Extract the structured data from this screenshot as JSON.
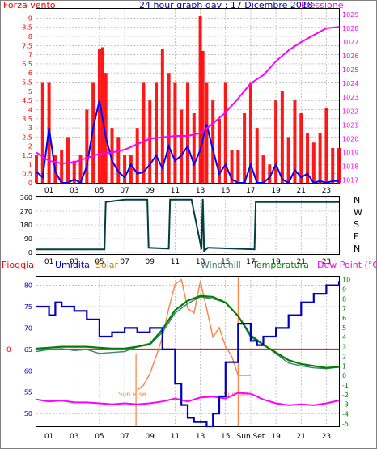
{
  "header": {
    "left_label": "Forza vento",
    "title": "24 hour graph day : 17 Dicembre 2018",
    "right_label": "Pressione"
  },
  "colors": {
    "wind": "#ff0000",
    "wind_avg": "#0000ff",
    "pressure": "#ff00ff",
    "direction": "#004040",
    "humidity": "#0000c0",
    "solar": "#ff8040",
    "windchill": "#408080",
    "temperature": "#008000",
    "dewpoint": "#ff00ff",
    "rain": "#ff0000",
    "grid": "#a0a0a0",
    "sun": "#ff8040"
  },
  "x_ticks": [
    "01",
    "03",
    "05",
    "07",
    "09",
    "11",
    "13",
    "15",
    "17",
    "19",
    "21",
    "23"
  ],
  "panels": {
    "wind": {
      "y_left_ticks": [
        "0",
        "0.5",
        "1",
        "1.5",
        "2",
        "2.5",
        "3",
        "3.5",
        "4",
        "4.5",
        "5",
        "5.5",
        "6",
        "6.5",
        "7",
        "7.5",
        "8",
        "8.5",
        "9"
      ],
      "y_right_ticks": [
        "1017",
        "1018",
        "1019",
        "1020",
        "1021",
        "1022",
        "1023",
        "1024",
        "1025",
        "1026",
        "1027",
        "1028",
        "1029"
      ]
    },
    "direction": {
      "y_left_ticks": [
        "0",
        "90",
        "180",
        "270",
        "360"
      ],
      "y_right_labels": [
        "N",
        "W",
        "S",
        "E",
        "N"
      ]
    },
    "temp": {
      "legend": {
        "rain": "Pioggia",
        "humidity": "Umidita",
        "solar": "Solar",
        "windchill": "Windchill",
        "temperature": "Temperatura",
        "dewpoint": "Dew Point (°C)"
      },
      "y_left_ticks": [
        "50",
        "55",
        "60",
        "65",
        "70",
        "75",
        "80"
      ],
      "rain_tick": "0",
      "y_right_ticks": [
        "-5",
        "-4",
        "-3",
        "-2",
        "-1",
        "0",
        "1",
        "2",
        "3",
        "4",
        "5",
        "6",
        "7",
        "8",
        "9",
        "10"
      ],
      "x_ticks": [
        "01",
        "03",
        "05",
        "07",
        "09",
        "11",
        "13",
        "15",
        "Sun Set",
        "19",
        "21",
        "23"
      ],
      "sunrise_label": "Sun Rise",
      "sunset_label": "Sun Set"
    }
  },
  "chart_data": [
    {
      "type": "line",
      "title": "24 hour graph day : 17 Dicembre 2018",
      "x_unit": "hour",
      "xlim": [
        0,
        24
      ],
      "ylim_left": [
        0,
        9.5
      ],
      "ylim_right": [
        1016.8,
        1029.4
      ],
      "series": [
        {
          "name": "Forza vento",
          "axis": "left",
          "style": "bars",
          "x": [
            0,
            0.5,
            1,
            1.5,
            2,
            2.5,
            3,
            3.5,
            4,
            4.5,
            5,
            5.25,
            5.5,
            6,
            6.5,
            7,
            7.5,
            8,
            8.5,
            9,
            9.5,
            10,
            10.5,
            11,
            11.5,
            12,
            12.5,
            13,
            13.2,
            13.5,
            14,
            14.5,
            15,
            15.5,
            16,
            16.5,
            17,
            17.5,
            18,
            18.5,
            19,
            19.5,
            20,
            20.5,
            21,
            21.5,
            22,
            22.5,
            23,
            23.5,
            24
          ],
          "y": [
            1.5,
            5.5,
            5.5,
            1.5,
            1.8,
            2.5,
            1.2,
            1.5,
            4,
            5.5,
            7.3,
            7.4,
            6,
            3,
            2.5,
            1.5,
            1.5,
            3,
            5.5,
            4.5,
            5.5,
            7.3,
            6,
            5.5,
            4,
            5.5,
            3.8,
            9.1,
            7.2,
            5.5,
            4.5,
            3.5,
            5.5,
            1.8,
            1.8,
            3.8,
            5.5,
            3,
            1.5,
            1,
            4.5,
            5,
            2.5,
            4.5,
            3.8,
            2.7,
            2.2,
            2.7,
            4.1,
            1.9,
            1.9
          ]
        },
        {
          "name": "",
          "axis": "left",
          "x": [
            0,
            0.5,
            1,
            1.5,
            2,
            2.5,
            3,
            3.5,
            4,
            4.5,
            5,
            5.5,
            6,
            6.5,
            7,
            7.5,
            8,
            8.5,
            9,
            9.5,
            10,
            10.5,
            11,
            11.5,
            12,
            12.5,
            13,
            13.5,
            14,
            14.5,
            15,
            15.5,
            16,
            16.5,
            17,
            17.5,
            18,
            18.5,
            19,
            19.5,
            20,
            20.5,
            21,
            21.5,
            22,
            22.5,
            23,
            23.5,
            24
          ],
          "y": [
            0.6,
            0.3,
            3,
            0.6,
            0,
            0,
            0.2,
            0,
            0.9,
            3,
            4.5,
            2.5,
            1.2,
            0.6,
            0.3,
            1,
            0.5,
            0.6,
            1,
            1.5,
            0.8,
            2,
            1.2,
            1.5,
            2,
            1,
            1.8,
            3.2,
            1.8,
            0.5,
            1,
            0.2,
            0,
            0,
            1,
            0,
            0,
            0.3,
            1,
            0.2,
            0,
            0.7,
            0.3,
            0.5,
            0,
            0.1,
            0,
            0.1,
            0.1
          ]
        },
        {
          "name": "Pressione",
          "axis": "right",
          "x": [
            0,
            1,
            2,
            3,
            4,
            5,
            6,
            7,
            8,
            9,
            10,
            11,
            12,
            13,
            14,
            15,
            16,
            17,
            18,
            19,
            20,
            21,
            22,
            23,
            24
          ],
          "y": [
            1019,
            1018.4,
            1018.2,
            1018.3,
            1018.6,
            1018.9,
            1019.0,
            1019.2,
            1019.6,
            1020.0,
            1020.1,
            1020.2,
            1020.2,
            1020.4,
            1021.1,
            1021.9,
            1022.9,
            1024.0,
            1024.6,
            1025.6,
            1026.4,
            1027.0,
            1027.5,
            1028.0,
            1028.1
          ]
        }
      ]
    },
    {
      "type": "line",
      "x_unit": "hour",
      "xlim": [
        0,
        24
      ],
      "ylim": [
        0,
        360
      ],
      "series": [
        {
          "name": "",
          "x": [
            0,
            5.4,
            5.5,
            7,
            8.8,
            8.9,
            10.5,
            10.6,
            12.3,
            13.1,
            13.2,
            13.3,
            13.6,
            13.7,
            17.3,
            17.4,
            24
          ],
          "y": [
            20,
            20,
            330,
            345,
            345,
            30,
            25,
            345,
            345,
            20,
            350,
            10,
            30,
            30,
            20,
            330,
            330
          ]
        }
      ]
    },
    {
      "type": "line",
      "x_unit": "hour",
      "xlim": [
        0,
        24
      ],
      "ylim_left": [
        47,
        82
      ],
      "ylim_right": [
        -5.3,
        10.3
      ],
      "series": [
        {
          "name": "Umidita",
          "axis": "left",
          "x": [
            0,
            1,
            1.5,
            2,
            3,
            4,
            5,
            5.5,
            6,
            7,
            8,
            9,
            10,
            11,
            11.5,
            12,
            12.5,
            13,
            13.5,
            14,
            14.5,
            15,
            16,
            17,
            17.5,
            18,
            19,
            20,
            21,
            22,
            23,
            24
          ],
          "y": [
            75,
            73,
            76,
            75,
            74,
            72,
            68,
            68,
            69,
            70,
            69,
            70,
            65,
            57,
            52,
            49,
            48,
            48,
            47,
            50,
            54,
            62,
            71,
            67,
            66,
            68,
            70,
            73,
            76,
            78,
            80,
            81
          ]
        },
        {
          "name": "Solar",
          "axis": "right",
          "x": [
            8,
            8.5,
            9,
            9.5,
            10,
            10.5,
            11,
            11.5,
            12,
            12.5,
            13,
            13.5,
            14,
            14.5,
            15,
            15.5,
            16,
            16.5,
            17
          ],
          "y": [
            -1.5,
            -1,
            0.2,
            2,
            4,
            7,
            9.5,
            10,
            7,
            6.5,
            9.8,
            7,
            4,
            5,
            3,
            2,
            0,
            0,
            0
          ]
        },
        {
          "name": "Windchill",
          "axis": "right",
          "x": [
            0,
            1,
            2,
            3,
            4,
            5,
            6,
            7,
            8,
            9,
            10,
            11,
            12,
            13,
            14,
            15,
            16,
            17,
            18,
            19,
            20,
            21,
            22,
            23,
            24
          ],
          "y": [
            2.5,
            2.7,
            2.8,
            2.6,
            2.7,
            2.3,
            2.4,
            2.5,
            3.0,
            3.2,
            4.5,
            6.5,
            7.5,
            8.2,
            8.0,
            7.6,
            6.2,
            4.0,
            3.2,
            2.3,
            1.3,
            1.0,
            0.8,
            0.7,
            0.9
          ]
        },
        {
          "name": "Temperatura",
          "axis": "right",
          "x": [
            0,
            1,
            2,
            3,
            4,
            5,
            6,
            7,
            8,
            9,
            10,
            11,
            12,
            13,
            14,
            15,
            16,
            17,
            18,
            19,
            20,
            21,
            22,
            23,
            24
          ],
          "y": [
            2.8,
            2.9,
            3.0,
            3.0,
            3.0,
            2.9,
            2.8,
            2.8,
            3.0,
            3.3,
            4.8,
            6.8,
            7.8,
            8.3,
            8.2,
            7.6,
            6.2,
            4.2,
            3.2,
            2.4,
            1.6,
            1.2,
            1.0,
            0.8,
            0.9
          ]
        },
        {
          "name": "Dew Point (°C)",
          "axis": "right",
          "x": [
            0,
            1,
            2,
            3,
            4,
            5,
            6,
            7,
            8,
            9,
            10,
            11,
            12,
            13,
            14,
            15,
            16,
            17,
            18,
            19,
            20,
            21,
            22,
            23,
            24
          ],
          "y": [
            -2.5,
            -2.7,
            -2.6,
            -2.8,
            -2.8,
            -2.9,
            -3.0,
            -2.9,
            -3.0,
            -2.9,
            -2.7,
            -2.4,
            -2.7,
            -2.3,
            -2.2,
            -2.4,
            -1.8,
            -1.9,
            -2.5,
            -2.9,
            -3.1,
            -3.0,
            -3.1,
            -2.9,
            -2.6
          ]
        },
        {
          "name": "Pioggia",
          "axis": "left",
          "x": [
            0,
            24
          ],
          "y": [
            65,
            65
          ]
        }
      ],
      "sunrise_hour": 7.9,
      "sunset_hour": 16.0
    }
  ]
}
